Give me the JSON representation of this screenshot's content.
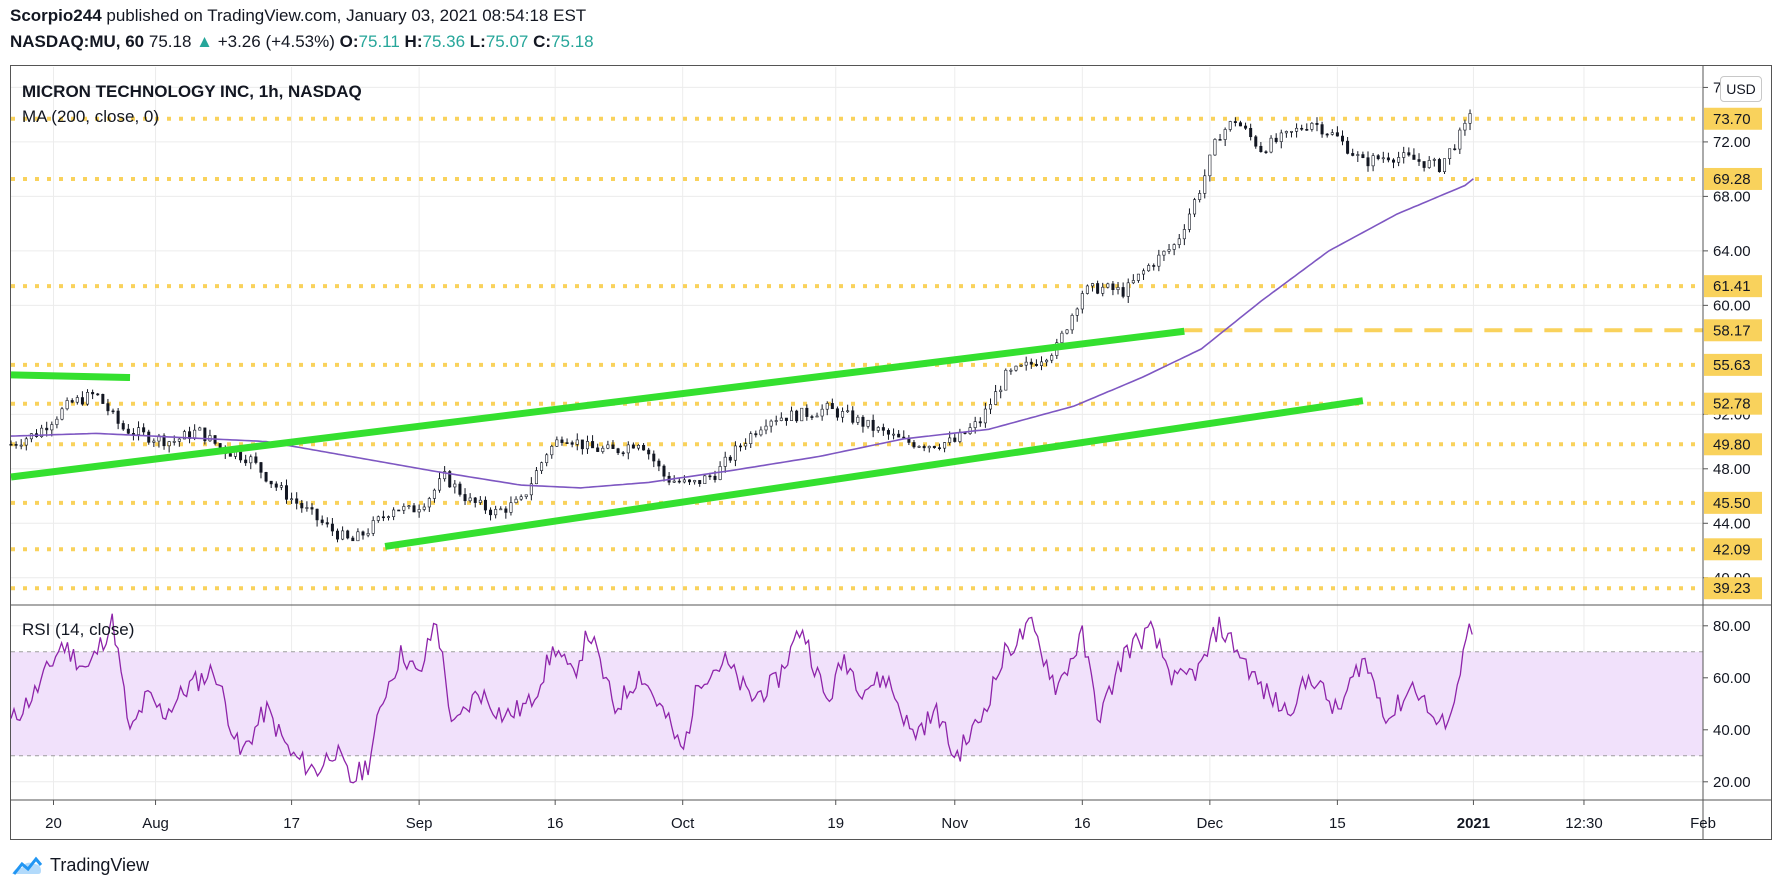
{
  "header": {
    "publisher": "Scorpio244",
    "published_text": "published on TradingView.com, January 03, 2021 08:54:18 EST",
    "symbol": "NASDAQ:MU, 60",
    "last": "75.18",
    "change_arrow": "▲",
    "change": "+3.26 (+4.53%)",
    "o_label": "O:",
    "o_value": "75.11",
    "h_label": "H:",
    "h_value": "75.36",
    "l_label": "L:",
    "l_value": "75.07",
    "c_label": "C:",
    "c_value": "75.18"
  },
  "pane": {
    "title": "MICRON TECHNOLOGY INC, 1h, NASDAQ",
    "ma_label": "MA (200, close, 0)",
    "currency": "USD",
    "rsi_label": "RSI (14, close)"
  },
  "branding": {
    "name": "TradingView"
  },
  "colors": {
    "level_line": "#f9d25c",
    "trendline": "#34e02f",
    "ma_line": "#7e57c2",
    "rsi_line": "#8e24aa",
    "rsi_band": "#f1e1fb",
    "candle_up": "#131722",
    "candle_down": "#131722"
  },
  "chart_data": [
    {
      "type": "candlestick",
      "title": "MICRON TECHNOLOGY INC, 1h, NASDAQ",
      "ylim": [
        38.0,
        77.5
      ],
      "y_ticks": [
        "76.00",
        "72.00",
        "68.00",
        "64.00",
        "60.00",
        "52.00",
        "48.00",
        "44.00",
        "40.00"
      ],
      "x_tick_labels": [
        "20",
        "Aug",
        "17",
        "Sep",
        "16",
        "Oct",
        "19",
        "Nov",
        "16",
        "Dec",
        "15",
        "2021",
        "12:30",
        "Feb"
      ],
      "x_tick_days": [
        20,
        32,
        48,
        63,
        79,
        94,
        112,
        126,
        141,
        156,
        171,
        187,
        200,
        214
      ],
      "horizontal_levels": [
        {
          "value": 73.7,
          "label": "73.70",
          "style": "dotted"
        },
        {
          "value": 69.28,
          "label": "69.28",
          "style": "dotted"
        },
        {
          "value": 61.41,
          "label": "61.41",
          "style": "dotted"
        },
        {
          "value": 58.17,
          "label": "58.17",
          "style": "dashed"
        },
        {
          "value": 55.63,
          "label": "55.63",
          "style": "dotted"
        },
        {
          "value": 52.78,
          "label": "52.78",
          "style": "dotted"
        },
        {
          "value": 49.8,
          "label": "49.80",
          "style": "dotted"
        },
        {
          "value": 45.5,
          "label": "45.50",
          "style": "dotted"
        },
        {
          "value": 42.09,
          "label": "42.09",
          "style": "dotted"
        },
        {
          "value": 39.23,
          "label": "39.23",
          "style": "dotted"
        }
      ],
      "trendlines": [
        {
          "x": [
            15,
            29
          ],
          "y": [
            54.9,
            54.7
          ]
        },
        {
          "x": [
            15,
            153
          ],
          "y": [
            47.4,
            58.1
          ]
        },
        {
          "x": [
            59,
            174
          ],
          "y": [
            42.3,
            53.0
          ]
        }
      ],
      "price_path": {
        "day": [
          15,
          18,
          22,
          25,
          28,
          31,
          34,
          37,
          40,
          43,
          46,
          49,
          52,
          55,
          57,
          60,
          62,
          64,
          66,
          69,
          72,
          75,
          78,
          80,
          83,
          86,
          89,
          92,
          95,
          98,
          101,
          104,
          108,
          111,
          114,
          117,
          120,
          123,
          126,
          129,
          132,
          135,
          138,
          141,
          143,
          146,
          149,
          152,
          155,
          157,
          159,
          162,
          165,
          168,
          171,
          174,
          177,
          180,
          183,
          186,
          187
        ],
        "close": [
          49.8,
          50.6,
          52.8,
          53.5,
          51.0,
          50.4,
          50.0,
          50.8,
          49.4,
          48.8,
          46.8,
          45.3,
          43.8,
          42.6,
          43.5,
          45.2,
          44.9,
          45.8,
          47.4,
          45.6,
          44.8,
          45.6,
          49.2,
          50.5,
          49.5,
          49.3,
          50.1,
          47.3,
          46.8,
          47.7,
          49.9,
          51.7,
          52.0,
          52.4,
          51.7,
          50.8,
          50.0,
          49.8,
          50.0,
          51.5,
          54.8,
          55.7,
          56.9,
          61.0,
          61.3,
          61.0,
          63.0,
          64.5,
          68.8,
          72.5,
          73.6,
          71.5,
          72.4,
          73.5,
          72.3,
          70.5,
          71.0,
          70.7,
          70.2,
          73.0,
          75.18
        ]
      },
      "moving_average": {
        "name": "MA (200, close, 0)",
        "day": [
          15,
          25,
          35,
          45,
          55,
          65,
          75,
          82,
          90,
          100,
          110,
          120,
          130,
          140,
          148,
          155,
          162,
          170,
          178,
          186,
          187
        ],
        "value": [
          50.4,
          50.6,
          50.3,
          50.0,
          48.9,
          47.8,
          46.8,
          46.6,
          47.0,
          47.9,
          48.9,
          50.2,
          50.9,
          52.6,
          54.7,
          56.8,
          60.3,
          64.0,
          66.7,
          68.8,
          69.3
        ]
      }
    },
    {
      "type": "line",
      "title": "RSI (14, close)",
      "ylim": [
        13,
        88
      ],
      "y_ticks": [
        "80.00",
        "60.00",
        "40.00",
        "20.00"
      ],
      "band": [
        30,
        70
      ],
      "x": [
        15,
        18,
        21,
        24,
        27,
        29,
        31,
        33,
        36,
        39,
        42,
        45,
        48,
        51,
        53,
        55,
        57,
        59,
        61,
        63,
        65,
        67,
        70,
        73,
        76,
        79,
        81,
        83,
        86,
        89,
        92,
        94,
        96,
        99,
        102,
        105,
        108,
        111,
        113,
        115,
        118,
        121,
        124,
        126,
        129,
        132,
        135,
        138,
        141,
        143,
        146,
        149,
        152,
        155,
        157,
        159,
        162,
        165,
        168,
        171,
        174,
        177,
        180,
        183,
        185,
        186,
        187
      ],
      "y": [
        43,
        55,
        73,
        63,
        82,
        38,
        53,
        46,
        57,
        63,
        30,
        48,
        30,
        24,
        33,
        20,
        27,
        55,
        70,
        60,
        83,
        40,
        55,
        45,
        50,
        72,
        60,
        78,
        48,
        62,
        45,
        31,
        60,
        66,
        52,
        58,
        80,
        50,
        68,
        56,
        60,
        38,
        47,
        29,
        44,
        70,
        80,
        56,
        76,
        44,
        70,
        78,
        58,
        64,
        80,
        72,
        56,
        47,
        61,
        46,
        68,
        44,
        58,
        40,
        52,
        79,
        76
      ]
    }
  ]
}
